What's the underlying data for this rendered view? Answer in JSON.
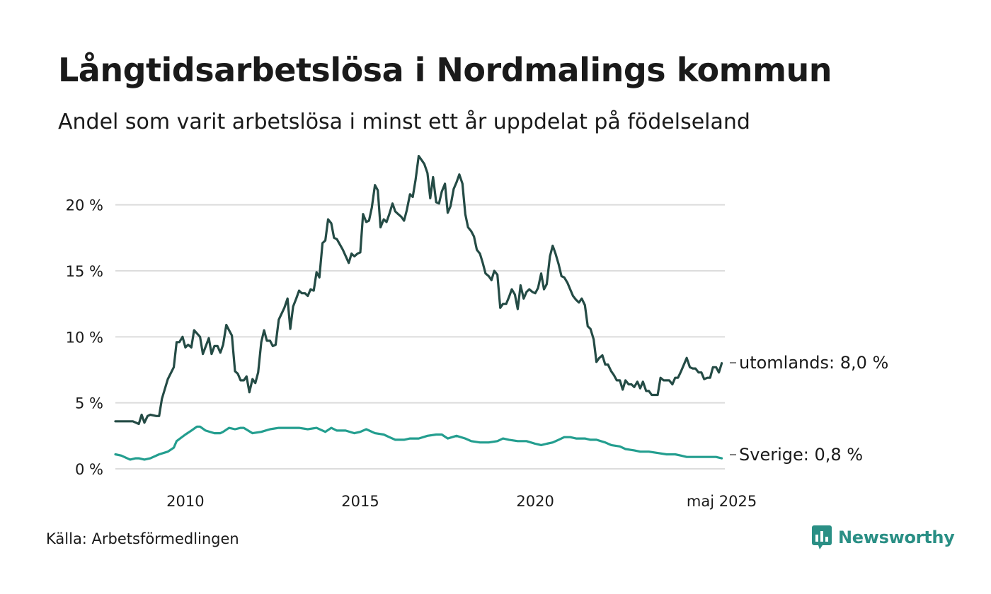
{
  "title": "Långtidsarbetslösa i Nordmalings kommun",
  "subtitle": "Andel som varit arbetslösa i minst ett år uppdelat på födelseland",
  "source": "Källa: Arbetsförmedlingen",
  "brand": {
    "name": "Newsworthy",
    "color": "#2a8f85"
  },
  "chart_data": {
    "type": "line",
    "x_range": [
      2008.0,
      2025.42
    ],
    "ylim": [
      0,
      24
    ],
    "y_ticks": [
      0,
      5,
      10,
      15,
      20
    ],
    "y_tick_labels": [
      "0 %",
      "5 %",
      "10 %",
      "15 %",
      "20 %"
    ],
    "x_ticks": [
      2010,
      2015,
      2020,
      2025.33
    ],
    "x_tick_labels": [
      "2010",
      "2015",
      "2020",
      "maj 2025"
    ],
    "grid": "horizontal",
    "series": [
      {
        "name": "utomlands",
        "end_label": "utomlands: 8,0 %",
        "color": "#244b45",
        "points": [
          [
            2008.0,
            3.6
          ],
          [
            2008.25,
            3.6
          ],
          [
            2008.5,
            3.6
          ],
          [
            2008.67,
            3.4
          ],
          [
            2008.75,
            4.1
          ],
          [
            2008.83,
            3.5
          ],
          [
            2008.92,
            4.0
          ],
          [
            2009.0,
            4.1
          ],
          [
            2009.17,
            4.0
          ],
          [
            2009.25,
            4.0
          ],
          [
            2009.33,
            5.3
          ],
          [
            2009.5,
            6.8
          ],
          [
            2009.67,
            7.7
          ],
          [
            2009.75,
            9.6
          ],
          [
            2009.83,
            9.6
          ],
          [
            2009.92,
            10.0
          ],
          [
            2010.0,
            9.2
          ],
          [
            2010.08,
            9.4
          ],
          [
            2010.17,
            9.2
          ],
          [
            2010.25,
            10.5
          ],
          [
            2010.42,
            10.0
          ],
          [
            2010.5,
            8.7
          ],
          [
            2010.67,
            9.9
          ],
          [
            2010.75,
            8.7
          ],
          [
            2010.83,
            9.3
          ],
          [
            2010.92,
            9.3
          ],
          [
            2011.0,
            8.8
          ],
          [
            2011.08,
            9.4
          ],
          [
            2011.17,
            10.9
          ],
          [
            2011.25,
            10.5
          ],
          [
            2011.33,
            10.1
          ],
          [
            2011.42,
            7.4
          ],
          [
            2011.5,
            7.2
          ],
          [
            2011.58,
            6.7
          ],
          [
            2011.67,
            6.7
          ],
          [
            2011.75,
            7.0
          ],
          [
            2011.83,
            5.8
          ],
          [
            2011.92,
            6.8
          ],
          [
            2012.0,
            6.5
          ],
          [
            2012.08,
            7.3
          ],
          [
            2012.17,
            9.6
          ],
          [
            2012.25,
            10.5
          ],
          [
            2012.33,
            9.7
          ],
          [
            2012.42,
            9.7
          ],
          [
            2012.5,
            9.3
          ],
          [
            2012.58,
            9.4
          ],
          [
            2012.67,
            11.3
          ],
          [
            2012.83,
            12.2
          ],
          [
            2012.92,
            12.9
          ],
          [
            2013.0,
            10.6
          ],
          [
            2013.08,
            12.3
          ],
          [
            2013.17,
            12.9
          ],
          [
            2013.25,
            13.5
          ],
          [
            2013.33,
            13.3
          ],
          [
            2013.42,
            13.3
          ],
          [
            2013.5,
            13.1
          ],
          [
            2013.58,
            13.6
          ],
          [
            2013.67,
            13.5
          ],
          [
            2013.75,
            14.9
          ],
          [
            2013.83,
            14.5
          ],
          [
            2013.92,
            17.1
          ],
          [
            2014.0,
            17.3
          ],
          [
            2014.08,
            18.9
          ],
          [
            2014.17,
            18.6
          ],
          [
            2014.25,
            17.5
          ],
          [
            2014.33,
            17.4
          ],
          [
            2014.5,
            16.6
          ],
          [
            2014.67,
            15.6
          ],
          [
            2014.75,
            16.3
          ],
          [
            2014.83,
            16.1
          ],
          [
            2014.92,
            16.3
          ],
          [
            2015.0,
            16.4
          ],
          [
            2015.08,
            19.3
          ],
          [
            2015.17,
            18.7
          ],
          [
            2015.25,
            18.8
          ],
          [
            2015.33,
            19.8
          ],
          [
            2015.42,
            21.5
          ],
          [
            2015.5,
            21.1
          ],
          [
            2015.58,
            18.3
          ],
          [
            2015.67,
            18.9
          ],
          [
            2015.75,
            18.7
          ],
          [
            2015.83,
            19.3
          ],
          [
            2015.92,
            20.1
          ],
          [
            2016.0,
            19.5
          ],
          [
            2016.08,
            19.3
          ],
          [
            2016.17,
            19.1
          ],
          [
            2016.25,
            18.8
          ],
          [
            2016.33,
            19.6
          ],
          [
            2016.42,
            20.8
          ],
          [
            2016.5,
            20.6
          ],
          [
            2016.58,
            21.9
          ],
          [
            2016.67,
            23.7
          ],
          [
            2016.75,
            23.4
          ],
          [
            2016.83,
            23.1
          ],
          [
            2016.92,
            22.4
          ],
          [
            2017.0,
            20.5
          ],
          [
            2017.08,
            22.1
          ],
          [
            2017.17,
            20.2
          ],
          [
            2017.25,
            20.1
          ],
          [
            2017.33,
            21.0
          ],
          [
            2017.42,
            21.6
          ],
          [
            2017.5,
            19.4
          ],
          [
            2017.58,
            19.9
          ],
          [
            2017.67,
            21.2
          ],
          [
            2017.75,
            21.7
          ],
          [
            2017.83,
            22.3
          ],
          [
            2017.92,
            21.6
          ],
          [
            2018.0,
            19.3
          ],
          [
            2018.08,
            18.3
          ],
          [
            2018.17,
            18.0
          ],
          [
            2018.25,
            17.6
          ],
          [
            2018.33,
            16.6
          ],
          [
            2018.42,
            16.3
          ],
          [
            2018.5,
            15.6
          ],
          [
            2018.58,
            14.8
          ],
          [
            2018.67,
            14.6
          ],
          [
            2018.75,
            14.3
          ],
          [
            2018.83,
            15.0
          ],
          [
            2018.92,
            14.7
          ],
          [
            2019.0,
            12.2
          ],
          [
            2019.08,
            12.5
          ],
          [
            2019.17,
            12.5
          ],
          [
            2019.25,
            13.0
          ],
          [
            2019.33,
            13.6
          ],
          [
            2019.42,
            13.2
          ],
          [
            2019.5,
            12.1
          ],
          [
            2019.58,
            13.9
          ],
          [
            2019.67,
            12.9
          ],
          [
            2019.75,
            13.4
          ],
          [
            2019.83,
            13.6
          ],
          [
            2019.92,
            13.4
          ],
          [
            2020.0,
            13.3
          ],
          [
            2020.08,
            13.7
          ],
          [
            2020.17,
            14.8
          ],
          [
            2020.25,
            13.6
          ],
          [
            2020.33,
            14.0
          ],
          [
            2020.42,
            16.1
          ],
          [
            2020.5,
            16.9
          ],
          [
            2020.58,
            16.3
          ],
          [
            2020.67,
            15.5
          ],
          [
            2020.75,
            14.6
          ],
          [
            2020.83,
            14.5
          ],
          [
            2020.92,
            14.1
          ],
          [
            2021.0,
            13.6
          ],
          [
            2021.08,
            13.1
          ],
          [
            2021.17,
            12.8
          ],
          [
            2021.25,
            12.6
          ],
          [
            2021.33,
            12.9
          ],
          [
            2021.42,
            12.4
          ],
          [
            2021.5,
            10.8
          ],
          [
            2021.58,
            10.6
          ],
          [
            2021.67,
            9.8
          ],
          [
            2021.75,
            8.1
          ],
          [
            2021.83,
            8.4
          ],
          [
            2021.92,
            8.6
          ],
          [
            2022.0,
            7.9
          ],
          [
            2022.08,
            7.9
          ],
          [
            2022.17,
            7.4
          ],
          [
            2022.25,
            7.1
          ],
          [
            2022.33,
            6.7
          ],
          [
            2022.42,
            6.7
          ],
          [
            2022.5,
            6.0
          ],
          [
            2022.58,
            6.7
          ],
          [
            2022.67,
            6.4
          ],
          [
            2022.75,
            6.4
          ],
          [
            2022.83,
            6.2
          ],
          [
            2022.92,
            6.6
          ],
          [
            2023.0,
            6.1
          ],
          [
            2023.08,
            6.6
          ],
          [
            2023.17,
            5.9
          ],
          [
            2023.25,
            5.9
          ],
          [
            2023.33,
            5.6
          ],
          [
            2023.5,
            5.6
          ],
          [
            2023.58,
            6.9
          ],
          [
            2023.67,
            6.7
          ],
          [
            2023.75,
            6.7
          ],
          [
            2023.83,
            6.7
          ],
          [
            2023.92,
            6.4
          ],
          [
            2024.0,
            6.9
          ],
          [
            2024.08,
            6.9
          ],
          [
            2024.17,
            7.4
          ],
          [
            2024.25,
            7.9
          ],
          [
            2024.33,
            8.4
          ],
          [
            2024.42,
            7.7
          ],
          [
            2024.5,
            7.6
          ],
          [
            2024.58,
            7.6
          ],
          [
            2024.67,
            7.3
          ],
          [
            2024.75,
            7.3
          ],
          [
            2024.83,
            6.8
          ],
          [
            2024.92,
            6.9
          ],
          [
            2025.0,
            6.9
          ],
          [
            2025.08,
            7.7
          ],
          [
            2025.17,
            7.7
          ],
          [
            2025.25,
            7.3
          ],
          [
            2025.33,
            8.0
          ]
        ]
      },
      {
        "name": "Sverige",
        "end_label": "Sverige: 0,8 %",
        "color": "#239e8f",
        "points": [
          [
            2008.0,
            1.1
          ],
          [
            2008.17,
            1.0
          ],
          [
            2008.42,
            0.7
          ],
          [
            2008.58,
            0.8
          ],
          [
            2008.67,
            0.8
          ],
          [
            2008.83,
            0.7
          ],
          [
            2009.0,
            0.8
          ],
          [
            2009.25,
            1.1
          ],
          [
            2009.5,
            1.3
          ],
          [
            2009.67,
            1.6
          ],
          [
            2009.75,
            2.1
          ],
          [
            2010.0,
            2.6
          ],
          [
            2010.17,
            2.9
          ],
          [
            2010.33,
            3.2
          ],
          [
            2010.42,
            3.2
          ],
          [
            2010.58,
            2.9
          ],
          [
            2010.83,
            2.7
          ],
          [
            2011.0,
            2.7
          ],
          [
            2011.08,
            2.8
          ],
          [
            2011.25,
            3.1
          ],
          [
            2011.42,
            3.0
          ],
          [
            2011.58,
            3.1
          ],
          [
            2011.67,
            3.1
          ],
          [
            2011.92,
            2.7
          ],
          [
            2012.17,
            2.8
          ],
          [
            2012.42,
            3.0
          ],
          [
            2012.67,
            3.1
          ],
          [
            2013.0,
            3.1
          ],
          [
            2013.25,
            3.1
          ],
          [
            2013.5,
            3.0
          ],
          [
            2013.75,
            3.1
          ],
          [
            2014.0,
            2.8
          ],
          [
            2014.17,
            3.1
          ],
          [
            2014.33,
            2.9
          ],
          [
            2014.58,
            2.9
          ],
          [
            2014.83,
            2.7
          ],
          [
            2015.0,
            2.8
          ],
          [
            2015.17,
            3.0
          ],
          [
            2015.42,
            2.7
          ],
          [
            2015.67,
            2.6
          ],
          [
            2015.83,
            2.4
          ],
          [
            2016.0,
            2.2
          ],
          [
            2016.25,
            2.2
          ],
          [
            2016.42,
            2.3
          ],
          [
            2016.67,
            2.3
          ],
          [
            2016.92,
            2.5
          ],
          [
            2017.17,
            2.6
          ],
          [
            2017.33,
            2.6
          ],
          [
            2017.5,
            2.3
          ],
          [
            2017.75,
            2.5
          ],
          [
            2018.0,
            2.3
          ],
          [
            2018.17,
            2.1
          ],
          [
            2018.42,
            2.0
          ],
          [
            2018.67,
            2.0
          ],
          [
            2018.92,
            2.1
          ],
          [
            2019.08,
            2.3
          ],
          [
            2019.25,
            2.2
          ],
          [
            2019.5,
            2.1
          ],
          [
            2019.75,
            2.1
          ],
          [
            2020.0,
            1.9
          ],
          [
            2020.17,
            1.8
          ],
          [
            2020.33,
            1.9
          ],
          [
            2020.5,
            2.0
          ],
          [
            2020.67,
            2.2
          ],
          [
            2020.83,
            2.4
          ],
          [
            2021.0,
            2.4
          ],
          [
            2021.17,
            2.3
          ],
          [
            2021.42,
            2.3
          ],
          [
            2021.58,
            2.2
          ],
          [
            2021.75,
            2.2
          ],
          [
            2022.0,
            2.0
          ],
          [
            2022.17,
            1.8
          ],
          [
            2022.42,
            1.7
          ],
          [
            2022.58,
            1.5
          ],
          [
            2022.83,
            1.4
          ],
          [
            2023.0,
            1.3
          ],
          [
            2023.25,
            1.3
          ],
          [
            2023.5,
            1.2
          ],
          [
            2023.75,
            1.1
          ],
          [
            2024.0,
            1.1
          ],
          [
            2024.17,
            1.0
          ],
          [
            2024.33,
            0.9
          ],
          [
            2024.58,
            0.9
          ],
          [
            2024.83,
            0.9
          ],
          [
            2025.0,
            0.9
          ],
          [
            2025.17,
            0.9
          ],
          [
            2025.33,
            0.8
          ]
        ]
      }
    ]
  }
}
